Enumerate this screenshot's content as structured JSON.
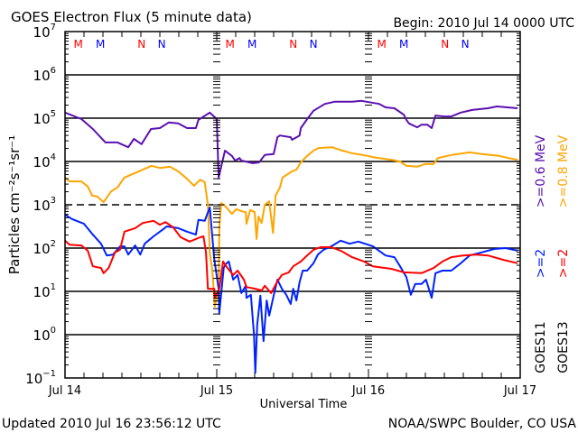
{
  "header": {
    "title": "GOES Electron Flux (5 minute data)",
    "begin": "Begin: 2010 Jul 14 0000 UTC"
  },
  "footer": {
    "updated": "Updated 2010 Jul 16 23:56:12 UTC",
    "credit": "NOAA/SWPC Boulder, CO USA"
  },
  "chart_data": {
    "type": "line",
    "title": "GOES Electron Flux (5 minute data)",
    "xlabel": "Universal Time",
    "ylabel": "Particles cm⁻²s⁻¹sr⁻¹",
    "yscale": "log",
    "xlim": [
      0,
      72
    ],
    "ylim_log10": [
      -1,
      7
    ],
    "x_ticks": [
      {
        "hour": 0,
        "label": "Jul 14"
      },
      {
        "hour": 24,
        "label": "Jul 15"
      },
      {
        "hour": 48,
        "label": "Jul 16"
      },
      {
        "hour": 72,
        "label": "Jul 17"
      }
    ],
    "y_ticks": [
      {
        "log10": 7,
        "base": "10",
        "exp": "7"
      },
      {
        "log10": 6,
        "base": "10",
        "exp": "6"
      },
      {
        "log10": 5,
        "base": "10",
        "exp": "5"
      },
      {
        "log10": 4,
        "base": "10",
        "exp": "4"
      },
      {
        "log10": 3,
        "base": "10",
        "exp": "3"
      },
      {
        "log10": 2,
        "base": "10",
        "exp": "2"
      },
      {
        "log10": 1,
        "base": "10",
        "exp": "1"
      },
      {
        "log10": 0,
        "base": "10",
        "exp": "0"
      },
      {
        "log10": -1,
        "base": "10",
        "exp": "−1"
      }
    ],
    "grid": {
      "solid_log10": [
        6,
        5,
        4,
        2,
        1,
        0
      ],
      "dashed_log10": [
        3
      ]
    },
    "markers": [
      {
        "hour": 2.1,
        "label": "M",
        "color": "#ff0000"
      },
      {
        "hour": 5.6,
        "label": "M",
        "color": "#0000ff"
      },
      {
        "hour": 12.1,
        "label": "N",
        "color": "#ff0000"
      },
      {
        "hour": 15.3,
        "label": "N",
        "color": "#0000ff"
      },
      {
        "hour": 26.1,
        "label": "M",
        "color": "#ff0000"
      },
      {
        "hour": 29.6,
        "label": "M",
        "color": "#0000ff"
      },
      {
        "hour": 36.1,
        "label": "N",
        "color": "#ff0000"
      },
      {
        "hour": 39.3,
        "label": "N",
        "color": "#0000ff"
      },
      {
        "hour": 50.1,
        "label": "M",
        "color": "#ff0000"
      },
      {
        "hour": 53.6,
        "label": "M",
        "color": "#0000ff"
      },
      {
        "hour": 60.1,
        "label": "N",
        "color": "#ff0000"
      },
      {
        "hour": 63.3,
        "label": "N",
        "color": "#0000ff"
      }
    ],
    "legend": {
      "placement": "right",
      "columns": [
        {
          "satellite": "GOES11",
          "items": [
            {
              "label": ">=2",
              "color": "#0022ff"
            },
            {
              "label": ">=0.6 MeV",
              "color": "#5b10b0"
            }
          ]
        },
        {
          "satellite": "GOES13",
          "items": [
            {
              "label": ">=2",
              "color": "#ff0000"
            },
            {
              "label": ">=0.8 MeV",
              "color": "#ffa500"
            }
          ]
        }
      ]
    },
    "series": [
      {
        "name": "GOES11 >=0.6 MeV",
        "color": "#5b10b0",
        "points": [
          [
            0,
            5.13
          ],
          [
            2.6,
            4.98
          ],
          [
            4.4,
            4.75
          ],
          [
            6.4,
            4.44
          ],
          [
            8.3,
            4.44
          ],
          [
            10,
            4.33
          ],
          [
            10.9,
            4.52
          ],
          [
            12.1,
            4.4
          ],
          [
            13.6,
            4.75
          ],
          [
            15,
            4.77
          ],
          [
            16.4,
            4.9
          ],
          [
            17.9,
            4.88
          ],
          [
            19.3,
            4.77
          ],
          [
            20.7,
            4.77
          ],
          [
            21.1,
            4.96
          ],
          [
            22.9,
            5.13
          ],
          [
            24,
            4.98
          ],
          [
            24.3,
            3.63
          ],
          [
            25.3,
            4.25
          ],
          [
            26.4,
            4.13
          ],
          [
            26.9,
            4.02
          ],
          [
            27.6,
            4.08
          ],
          [
            27.9,
            4.02
          ],
          [
            29.7,
            3.96
          ],
          [
            30.7,
            3.98
          ],
          [
            31.6,
            4.15
          ],
          [
            33,
            4.17
          ],
          [
            33.6,
            4.56
          ],
          [
            34,
            4.6
          ],
          [
            35.7,
            4.56
          ],
          [
            35.9,
            4.5
          ],
          [
            37.1,
            4.6
          ],
          [
            37.3,
            4.77
          ],
          [
            38.3,
            4.98
          ],
          [
            39.3,
            5.17
          ],
          [
            41.1,
            5.33
          ],
          [
            42.6,
            5.38
          ],
          [
            45.4,
            5.38
          ],
          [
            46.9,
            5.4
          ],
          [
            49.7,
            5.33
          ],
          [
            50.7,
            5.25
          ],
          [
            52.1,
            5.23
          ],
          [
            53.6,
            5.08
          ],
          [
            54,
            4.96
          ],
          [
            54.4,
            4.88
          ],
          [
            55.7,
            4.79
          ],
          [
            56.4,
            4.85
          ],
          [
            57.3,
            4.85
          ],
          [
            58,
            4.77
          ],
          [
            58.6,
            5.06
          ],
          [
            60,
            5.04
          ],
          [
            61.1,
            5.04
          ],
          [
            62.6,
            5.13
          ],
          [
            64.4,
            5.19
          ],
          [
            66.9,
            5.23
          ],
          [
            68.3,
            5.27
          ],
          [
            71.6,
            5.23
          ]
        ]
      },
      {
        "name": "GOES13 >=0.8 MeV",
        "color": "#ffa500",
        "points": [
          [
            0,
            3.63
          ],
          [
            0.7,
            3.54
          ],
          [
            2.6,
            3.54
          ],
          [
            3.6,
            3.42
          ],
          [
            4.3,
            3.21
          ],
          [
            5.1,
            3.19
          ],
          [
            6.1,
            3.06
          ],
          [
            7.3,
            3.31
          ],
          [
            8.3,
            3.4
          ],
          [
            9.4,
            3.63
          ],
          [
            10.7,
            3.71
          ],
          [
            12.3,
            3.81
          ],
          [
            13.7,
            3.9
          ],
          [
            15,
            3.85
          ],
          [
            16.6,
            3.88
          ],
          [
            17.9,
            3.77
          ],
          [
            19.3,
            3.6
          ],
          [
            20.4,
            3.44
          ],
          [
            21.4,
            3.58
          ],
          [
            22.1,
            3.52
          ],
          [
            22.6,
            3.0
          ],
          [
            22.9,
            1.9
          ],
          [
            23.3,
            1.48
          ],
          [
            23.7,
            0.65
          ],
          [
            24.3,
            1.06
          ],
          [
            24.4,
            2.46
          ],
          [
            24.7,
            3.04
          ],
          [
            25.4,
            2.96
          ],
          [
            26.4,
            2.79
          ],
          [
            27.1,
            2.9
          ],
          [
            27.9,
            2.85
          ],
          [
            28.6,
            2.83
          ],
          [
            28.7,
            2.56
          ],
          [
            29.3,
            2.88
          ],
          [
            30,
            2.83
          ],
          [
            30.3,
            2.21
          ],
          [
            30.6,
            2.73
          ],
          [
            31.1,
            2.58
          ],
          [
            31.6,
            3.0
          ],
          [
            32.3,
            3.08
          ],
          [
            32.9,
            2.35
          ],
          [
            33.3,
            3.21
          ],
          [
            34,
            3.4
          ],
          [
            34.4,
            3.63
          ],
          [
            35.9,
            3.77
          ],
          [
            36.6,
            3.81
          ],
          [
            37.3,
            3.98
          ],
          [
            38.3,
            4.13
          ],
          [
            39.3,
            4.25
          ],
          [
            40.1,
            4.31
          ],
          [
            42.3,
            4.33
          ],
          [
            43,
            4.29
          ],
          [
            45.4,
            4.19
          ],
          [
            47.9,
            4.13
          ],
          [
            48.7,
            4.1
          ],
          [
            51.6,
            4.04
          ],
          [
            53,
            4.0
          ],
          [
            54,
            3.9
          ],
          [
            55.7,
            3.88
          ],
          [
            56.9,
            3.94
          ],
          [
            58.3,
            3.94
          ],
          [
            59,
            4.08
          ],
          [
            61.1,
            4.15
          ],
          [
            64,
            4.21
          ],
          [
            65.9,
            4.17
          ],
          [
            68.7,
            4.13
          ],
          [
            70.1,
            4.08
          ],
          [
            71.6,
            4.04
          ]
        ]
      },
      {
        "name": "GOES11 >=2 MeV",
        "color": "#0022ff",
        "points": [
          [
            0,
            2.77
          ],
          [
            1.1,
            2.67
          ],
          [
            3,
            2.56
          ],
          [
            4.4,
            2.31
          ],
          [
            5.7,
            2.1
          ],
          [
            6.6,
            1.83
          ],
          [
            7.6,
            1.85
          ],
          [
            8.7,
            2.04
          ],
          [
            9.4,
            2.04
          ],
          [
            10,
            1.85
          ],
          [
            11.1,
            2.06
          ],
          [
            11.9,
            1.85
          ],
          [
            12.6,
            2.1
          ],
          [
            14,
            2.27
          ],
          [
            15.4,
            2.42
          ],
          [
            16.1,
            2.5
          ],
          [
            17.9,
            2.46
          ],
          [
            19.3,
            2.38
          ],
          [
            20.7,
            2.31
          ],
          [
            21.1,
            2.65
          ],
          [
            22.1,
            2.63
          ],
          [
            22.9,
            2.94
          ],
          [
            23.6,
            1.75
          ],
          [
            24.3,
            1.06
          ],
          [
            24.4,
            0.5
          ],
          [
            25.1,
            1.54
          ],
          [
            25.4,
            1.63
          ],
          [
            25.9,
            1.69
          ],
          [
            26.6,
            1.27
          ],
          [
            27.3,
            1.38
          ],
          [
            27.9,
            0.96
          ],
          [
            28.6,
            1.13
          ],
          [
            28.7,
            0.85
          ],
          [
            29.4,
            0.92
          ],
          [
            29.9,
            -0.02
          ],
          [
            30.1,
            -0.88
          ],
          [
            30.4,
            0.23
          ],
          [
            30.9,
            0.9
          ],
          [
            31.4,
            -0.15
          ],
          [
            31.9,
            0.79
          ],
          [
            32.3,
            0.44
          ],
          [
            33,
            0.9
          ],
          [
            33.6,
            1.27
          ],
          [
            34.3,
            1.06
          ],
          [
            35,
            0.92
          ],
          [
            35.7,
            0.71
          ],
          [
            36.1,
            1.06
          ],
          [
            36.6,
            0.79
          ],
          [
            37.1,
            1.21
          ],
          [
            37.6,
            1.48
          ],
          [
            38.3,
            1.48
          ],
          [
            39.3,
            1.65
          ],
          [
            40,
            1.85
          ],
          [
            40.9,
            1.96
          ],
          [
            42.1,
            2.04
          ],
          [
            43.6,
            2.17
          ],
          [
            45,
            2.1
          ],
          [
            46.4,
            2.15
          ],
          [
            47.9,
            2.08
          ],
          [
            48.7,
            2.04
          ],
          [
            50.7,
            1.83
          ],
          [
            52.1,
            1.79
          ],
          [
            53,
            1.58
          ],
          [
            54,
            1.33
          ],
          [
            54.7,
            0.92
          ],
          [
            55.4,
            1.17
          ],
          [
            56.4,
            1.17
          ],
          [
            57.1,
            1.27
          ],
          [
            58,
            0.85
          ],
          [
            58.6,
            1.42
          ],
          [
            59.7,
            1.48
          ],
          [
            61.1,
            1.48
          ],
          [
            62.6,
            1.65
          ],
          [
            64,
            1.83
          ],
          [
            65.9,
            1.9
          ],
          [
            67.9,
            1.98
          ],
          [
            69.7,
            2.0
          ],
          [
            71.6,
            1.94
          ]
        ]
      },
      {
        "name": "GOES13 >=2 MeV",
        "color": "#ff0000",
        "points": [
          [
            0,
            2.17
          ],
          [
            0.7,
            2.08
          ],
          [
            2.6,
            2.06
          ],
          [
            3.6,
            1.94
          ],
          [
            4.4,
            1.58
          ],
          [
            5.7,
            1.54
          ],
          [
            6.1,
            1.42
          ],
          [
            6.9,
            1.54
          ],
          [
            7.9,
            1.9
          ],
          [
            8.7,
            1.96
          ],
          [
            9.4,
            2.38
          ],
          [
            11.1,
            2.46
          ],
          [
            12.3,
            2.58
          ],
          [
            14,
            2.63
          ],
          [
            15,
            2.54
          ],
          [
            15.9,
            2.6
          ],
          [
            17.1,
            2.48
          ],
          [
            18.3,
            2.25
          ],
          [
            19.7,
            2.15
          ],
          [
            21.4,
            2.25
          ],
          [
            21.9,
            2.27
          ],
          [
            22.3,
            1.9
          ],
          [
            22.6,
            1.06
          ],
          [
            23.6,
            1.06
          ],
          [
            23.7,
            0.85
          ],
          [
            24.4,
            1.06
          ],
          [
            25,
            1.69
          ],
          [
            25.7,
            1.54
          ],
          [
            26.6,
            1.38
          ],
          [
            27.3,
            1.48
          ],
          [
            28.3,
            1.27
          ],
          [
            28.7,
            1.1
          ],
          [
            30.1,
            1.06
          ],
          [
            31.1,
            1.02
          ],
          [
            31.6,
            1.13
          ],
          [
            32.6,
            0.96
          ],
          [
            33.6,
            1.23
          ],
          [
            34.3,
            1.38
          ],
          [
            35.4,
            1.44
          ],
          [
            36.1,
            1.58
          ],
          [
            37.3,
            1.69
          ],
          [
            38.3,
            1.83
          ],
          [
            39.3,
            1.96
          ],
          [
            40.4,
            2.02
          ],
          [
            42.1,
            2.02
          ],
          [
            43.6,
            1.94
          ],
          [
            45.4,
            1.79
          ],
          [
            47.3,
            1.69
          ],
          [
            48.7,
            1.58
          ],
          [
            51.6,
            1.52
          ],
          [
            53.6,
            1.44
          ],
          [
            56.4,
            1.42
          ],
          [
            58.3,
            1.54
          ],
          [
            59.7,
            1.69
          ],
          [
            61.1,
            1.79
          ],
          [
            63,
            1.83
          ],
          [
            65,
            1.85
          ],
          [
            66.9,
            1.83
          ],
          [
            69.3,
            1.73
          ],
          [
            71.6,
            1.65
          ]
        ]
      }
    ]
  }
}
